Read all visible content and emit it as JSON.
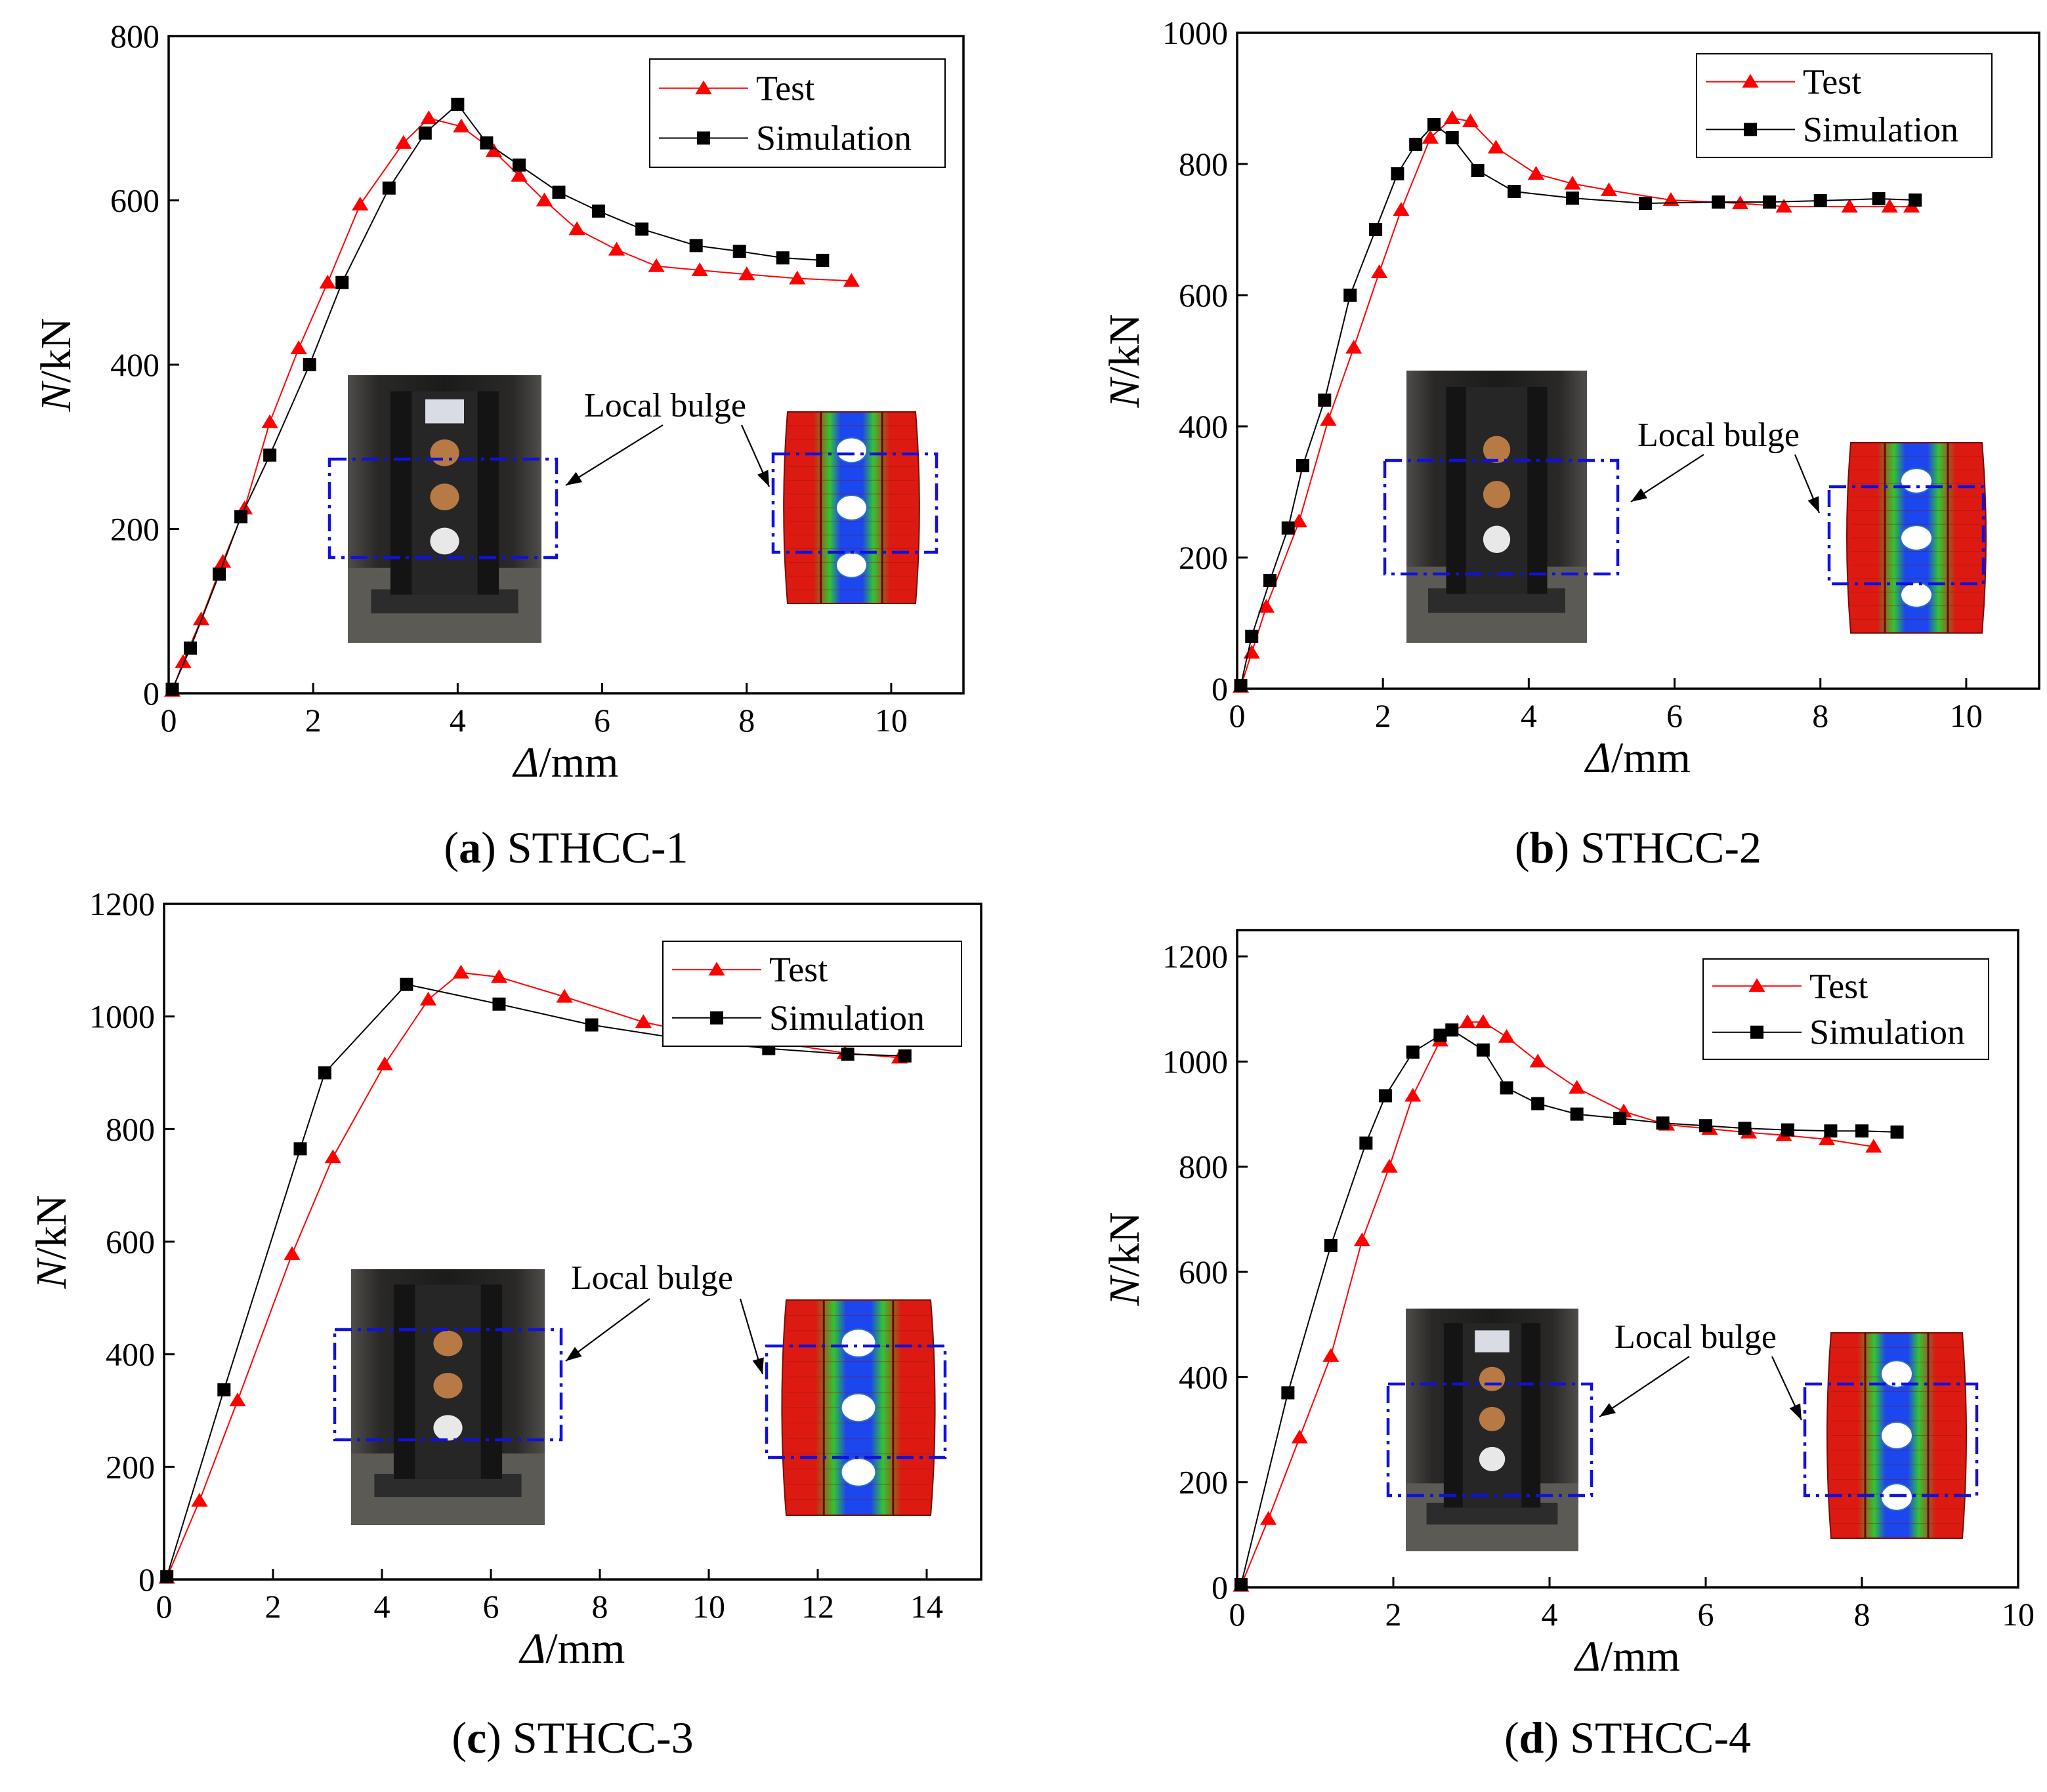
{
  "colors": {
    "test": "#ff0000",
    "simulation": "#000000",
    "highlight_box": "#1111dd",
    "fe_red": "#dd1a12",
    "fe_green": "#33c433",
    "fe_blue": "#1c46ee"
  },
  "icons": {
    "test_marker": "triangle-up",
    "simulation_marker": "square"
  },
  "chart_data": [
    {
      "type": "line",
      "panel_letter": "a",
      "caption_open": "(",
      "caption_close": ")",
      "caption_text": " STHCC-1",
      "ylabel_italic": "N",
      "ylabel_unit": "/kN",
      "xlabel_italic": "Δ",
      "xlabel_unit": "/mm",
      "xlim": [
        0,
        11
      ],
      "ylim": [
        0,
        800
      ],
      "xticks": [
        0,
        2,
        4,
        6,
        8,
        10
      ],
      "yticks": [
        0,
        200,
        400,
        600,
        800
      ],
      "legend": [
        "Test",
        "Simulation"
      ],
      "annotation": "Local bulge",
      "series": [
        {
          "name": "Test",
          "x": [
            0.05,
            0.2,
            0.45,
            0.75,
            1.05,
            1.4,
            1.8,
            2.2,
            2.65,
            3.25,
            3.6,
            4.05,
            4.5,
            4.85,
            5.2,
            5.65,
            6.2,
            6.75,
            7.35,
            8.0,
            8.7,
            9.45
          ],
          "y": [
            3,
            38,
            90,
            160,
            225,
            330,
            420,
            500,
            595,
            670,
            700,
            690,
            660,
            630,
            600,
            565,
            540,
            520,
            515,
            510,
            505,
            502
          ]
        },
        {
          "name": "Simulation",
          "x": [
            0.05,
            0.3,
            0.7,
            1.0,
            1.4,
            1.95,
            2.4,
            3.05,
            3.55,
            4.0,
            4.4,
            4.85,
            5.4,
            5.95,
            6.55,
            7.3,
            7.9,
            8.5,
            9.05
          ],
          "y": [
            5,
            55,
            145,
            215,
            290,
            400,
            500,
            615,
            682,
            717,
            670,
            643,
            610,
            587,
            565,
            545,
            538,
            530,
            527
          ]
        }
      ]
    },
    {
      "type": "line",
      "panel_letter": "b",
      "caption_open": "(",
      "caption_close": ")",
      "caption_text": " STHCC-2",
      "ylabel_italic": "N",
      "ylabel_unit": "/kN",
      "xlabel_italic": "Δ",
      "xlabel_unit": "/mm",
      "xlim": [
        0,
        11
      ],
      "ylim": [
        0,
        1000
      ],
      "xticks": [
        0,
        2,
        4,
        6,
        8,
        10
      ],
      "yticks": [
        0,
        200,
        400,
        600,
        800,
        1000
      ],
      "legend": [
        "Test",
        "Simulation"
      ],
      "annotation": "Local bulge",
      "series": [
        {
          "name": "Test",
          "x": [
            0.05,
            0.2,
            0.4,
            0.85,
            1.25,
            1.6,
            1.95,
            2.25,
            2.65,
            2.95,
            3.2,
            3.55,
            4.1,
            4.6,
            5.1,
            5.95,
            6.9,
            7.5,
            8.4,
            8.95,
            9.25
          ],
          "y": [
            3,
            55,
            125,
            255,
            410,
            520,
            635,
            730,
            840,
            870,
            865,
            825,
            785,
            770,
            760,
            745,
            740,
            735,
            735,
            735,
            735
          ]
        },
        {
          "name": "Simulation",
          "x": [
            0.05,
            0.2,
            0.45,
            0.7,
            0.9,
            1.2,
            1.55,
            1.9,
            2.2,
            2.45,
            2.7,
            2.95,
            3.3,
            3.8,
            4.6,
            5.6,
            6.6,
            7.3,
            8.0,
            8.8,
            9.3
          ],
          "y": [
            5,
            80,
            165,
            245,
            340,
            440,
            600,
            700,
            785,
            830,
            860,
            840,
            790,
            758,
            748,
            740,
            742,
            742,
            744,
            747,
            745
          ]
        }
      ]
    },
    {
      "type": "line",
      "panel_letter": "c",
      "caption_open": "(",
      "caption_close": ")",
      "caption_text": " STHCC-3",
      "ylabel_italic": "N",
      "ylabel_unit": "/kN",
      "xlabel_italic": "Δ",
      "xlabel_unit": "/mm",
      "xlim": [
        0,
        15
      ],
      "ylim": [
        0,
        1200
      ],
      "xticks": [
        0,
        2,
        4,
        6,
        8,
        10,
        12,
        14
      ],
      "yticks": [
        0,
        200,
        400,
        600,
        800,
        1000,
        1200
      ],
      "legend": [
        "Test",
        "Simulation"
      ],
      "annotation": "Local bulge",
      "series": [
        {
          "name": "Test",
          "x": [
            0.05,
            0.65,
            1.35,
            2.35,
            3.1,
            4.05,
            4.85,
            5.45,
            6.15,
            7.35,
            8.8,
            9.8,
            10.95,
            12.5,
            13.5
          ],
          "y": [
            3,
            140,
            318,
            578,
            750,
            915,
            1030,
            1078,
            1070,
            1035,
            990,
            970,
            958,
            935,
            927
          ]
        },
        {
          "name": "Simulation",
          "x": [
            0.05,
            1.1,
            2.5,
            2.95,
            4.45,
            6.15,
            7.85,
            9.65,
            11.1,
            12.55,
            13.6
          ],
          "y": [
            5,
            337,
            765,
            900,
            1057,
            1022,
            985,
            958,
            943,
            933,
            930
          ]
        }
      ]
    },
    {
      "type": "line",
      "panel_letter": "d",
      "caption_open": "(",
      "caption_close": ")",
      "caption_text": " STHCC-4",
      "ylabel_italic": "N",
      "ylabel_unit": "/kN",
      "xlabel_italic": "Δ",
      "xlabel_unit": "/mm",
      "xlim": [
        0,
        10
      ],
      "ylim": [
        0,
        1250
      ],
      "xticks": [
        0,
        2,
        4,
        6,
        8,
        10
      ],
      "yticks": [
        0,
        200,
        400,
        600,
        800,
        1000,
        1200
      ],
      "legend": [
        "Test",
        "Simulation"
      ],
      "annotation": "Local bulge",
      "series": [
        {
          "name": "Test",
          "x": [
            0.05,
            0.4,
            0.8,
            1.2,
            1.6,
            1.95,
            2.25,
            2.6,
            2.95,
            3.15,
            3.45,
            3.85,
            4.35,
            4.95,
            5.5,
            6.05,
            6.55,
            7.0,
            7.55,
            8.15
          ],
          "y": [
            3,
            130,
            285,
            440,
            660,
            800,
            935,
            1040,
            1075,
            1075,
            1047,
            1000,
            950,
            905,
            880,
            872,
            865,
            860,
            852,
            838
          ]
        },
        {
          "name": "Simulation",
          "x": [
            0.05,
            0.65,
            1.2,
            1.65,
            1.9,
            2.25,
            2.6,
            2.75,
            3.15,
            3.45,
            3.85,
            4.35,
            4.9,
            5.45,
            6.0,
            6.5,
            7.05,
            7.6,
            8.0,
            8.45
          ],
          "y": [
            5,
            370,
            650,
            845,
            935,
            1018,
            1050,
            1060,
            1022,
            950,
            920,
            900,
            892,
            883,
            878,
            873,
            870,
            868,
            868,
            866
          ]
        }
      ]
    }
  ]
}
